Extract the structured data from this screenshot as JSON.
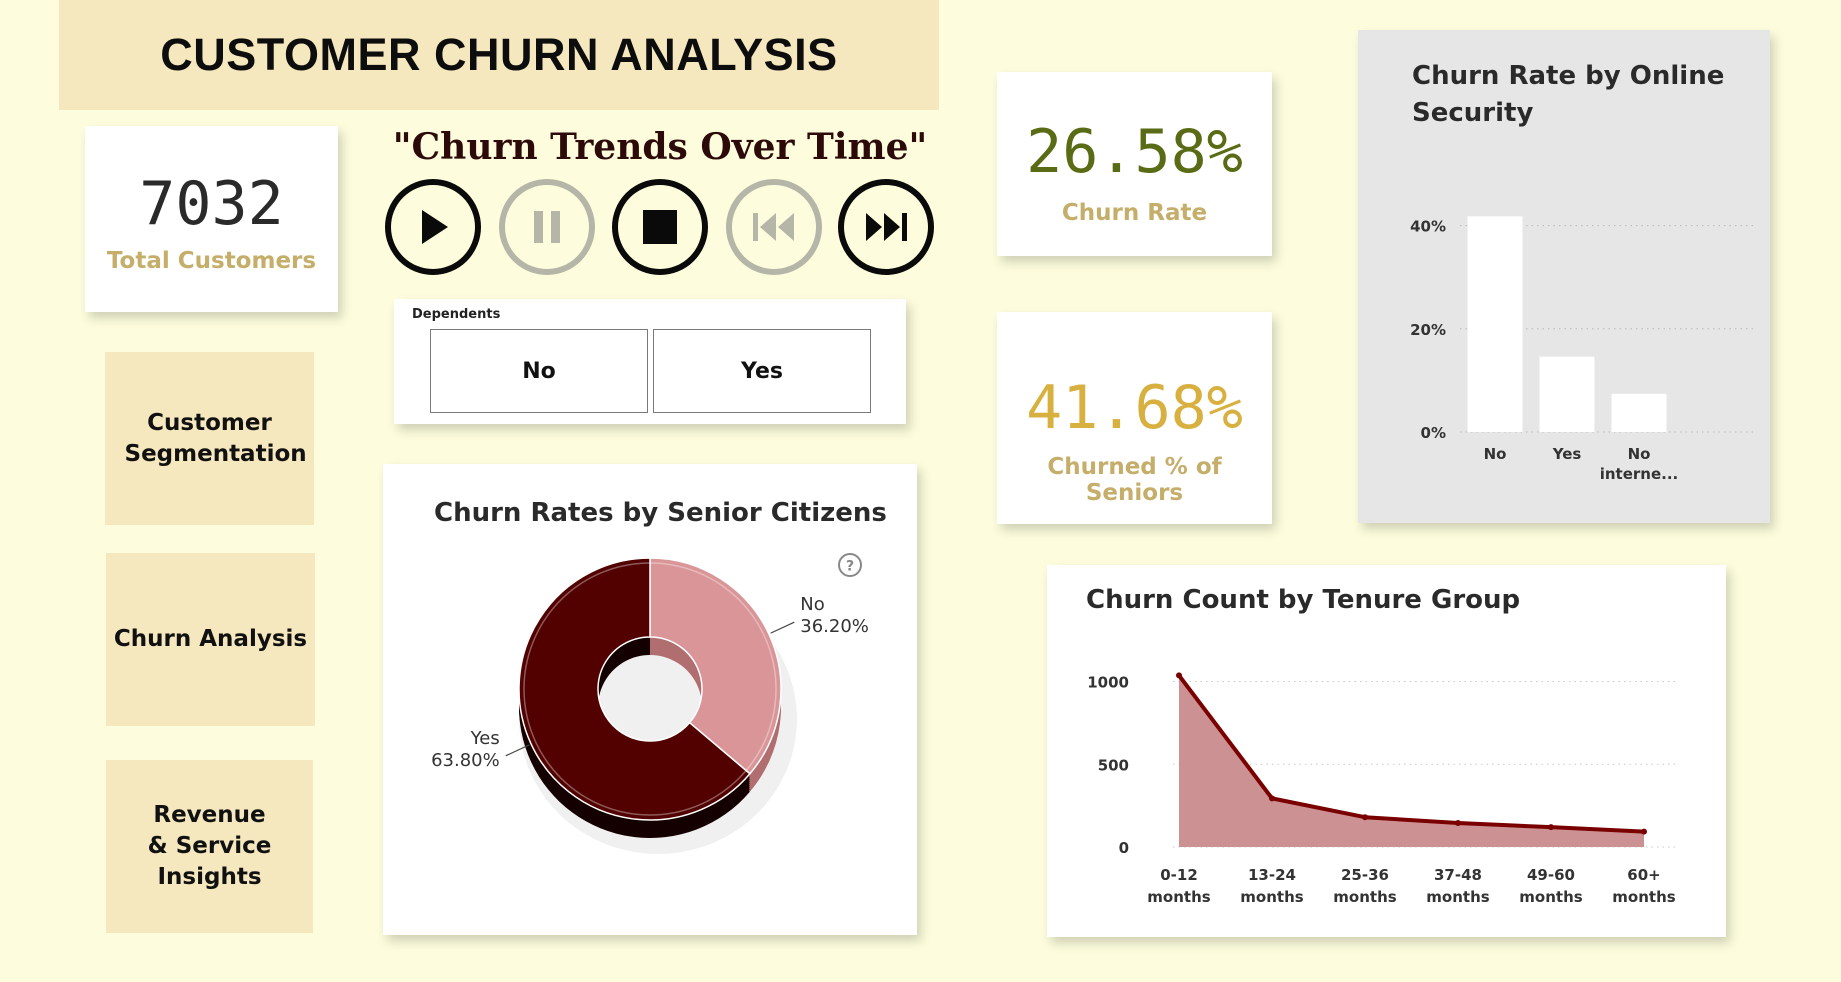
{
  "header": {
    "title": "CUSTOMER CHURN ANALYSIS"
  },
  "kpis": {
    "total_customers": {
      "value": "7032",
      "label": "Total Customers"
    },
    "churn_rate": {
      "value": "26.58%",
      "label": "Churn Rate"
    },
    "churned_seniors": {
      "value": "41.68%",
      "label": "Churned % of Seniors"
    }
  },
  "nav": [
    {
      "label": "Customer Segmentation"
    },
    {
      "label": "Churn Analysis"
    },
    {
      "label": "Revenue & Service Insights"
    }
  ],
  "playback": {
    "title": "\"Churn Trends Over Time\"",
    "buttons": [
      {
        "name": "play",
        "enabled": true
      },
      {
        "name": "pause",
        "enabled": false
      },
      {
        "name": "stop",
        "enabled": true
      },
      {
        "name": "previous",
        "enabled": false
      },
      {
        "name": "next",
        "enabled": true
      }
    ]
  },
  "slicer": {
    "label": "Dependents",
    "options": [
      "No",
      "Yes"
    ]
  },
  "colors": {
    "background": "#fdfddd",
    "tile": "#f5e8be",
    "dark_red": "#520000",
    "pink": "#d99597",
    "area_fill": "#cc9193",
    "line": "#7a0000",
    "olive": "#5a6b16",
    "gold": "#d8b040",
    "label_gold": "#c5ad6a"
  },
  "chart_data": [
    {
      "id": "senior",
      "type": "pie",
      "title": "Churn Rates by Senior Citizens",
      "slices": [
        {
          "name": "No",
          "value": 36.2,
          "label": "36.20%",
          "color": "#d99597"
        },
        {
          "name": "Yes",
          "value": 63.8,
          "label": "63.80%",
          "color": "#520000"
        }
      ],
      "donut": true
    },
    {
      "id": "security",
      "type": "bar",
      "title": "Churn Rate by Online Security",
      "categories": [
        "No",
        "Yes",
        "No interne..."
      ],
      "values": [
        41.8,
        14.6,
        7.4
      ],
      "ylim": [
        0,
        50
      ],
      "yticks": [
        0,
        20,
        40
      ],
      "ytick_labels": [
        "0%",
        "20%",
        "40%"
      ],
      "grid": true
    },
    {
      "id": "tenure",
      "type": "area",
      "title": "Churn Count by Tenure Group",
      "categories": [
        "0-12 months",
        "13-24 months",
        "25-36 months",
        "37-48 months",
        "49-60 months",
        "60+ months"
      ],
      "values": [
        1037,
        294,
        180,
        145,
        120,
        93
      ],
      "ylim": [
        0,
        1100
      ],
      "yticks": [
        0,
        500,
        1000
      ],
      "ytick_labels": [
        "0",
        "500",
        "1000"
      ],
      "grid": true
    }
  ]
}
